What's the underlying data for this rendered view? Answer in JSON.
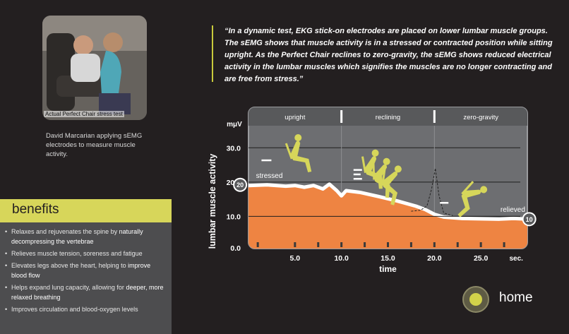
{
  "photo": {
    "caption": "Actual  Perfect Chair stress test"
  },
  "credit": "David Marcarian applying sEMG electrodes to measure muscle activity.",
  "quote": "“In a dynamic test, EKG stick-on electrodes are placed on lower lumbar muscle groups. The sEMG shows that muscle activity is in a stressed or contracted position while sitting upright. As the Perfect Chair reclines to zero-gravity, the sEMG shows reduced electrical activity in the lumbar muscles which signifies the muscles are no longer contracting and are free from stress.”",
  "benefits": {
    "title": "benefits",
    "items": [
      {
        "text": "Relaxes and rejuvenates the spine by ",
        "em": "naturally decompressing the vertebrae",
        "after": ""
      },
      {
        "text": "Relieves muscle tension, soreness and fatigue",
        "em": "",
        "after": ""
      },
      {
        "text": "Elevates legs above the heart, helping to ",
        "em": "improve blood flow",
        "after": ""
      },
      {
        "text": "Helps expand lung capacity, allowing for ",
        "em": "deeper, more relaxed breathing",
        "after": ""
      },
      {
        "text": "Improves circulation and blood-oxygen levels",
        "em": "",
        "after": ""
      }
    ]
  },
  "home": {
    "label": "home"
  },
  "colors": {
    "accent": "#d2d24a",
    "chart_panel": "#6d6e71",
    "muscle_fill": "#ee8442",
    "figure": "#d6d65a"
  },
  "chart_data": {
    "type": "area",
    "xlabel": "time",
    "ylabel": "lumbar muscle activity",
    "y_unit": "mμV",
    "x_unit": "sec.",
    "xlim": [
      0,
      30
    ],
    "ylim": [
      0,
      35
    ],
    "x_ticks": [
      5,
      10,
      15,
      20,
      25
    ],
    "x_tick_labels": [
      "5.0",
      "10.0",
      "15.0",
      "20.0",
      "25.0"
    ],
    "y_ticks": [
      0,
      10,
      20,
      30
    ],
    "y_tick_labels": [
      "0.0",
      "10.0",
      "20.0",
      "30.0"
    ],
    "grid": "horizontal",
    "phases": [
      {
        "label": "upright",
        "start": 0,
        "end": 10
      },
      {
        "label": "reclining",
        "start": 10,
        "end": 20
      },
      {
        "label": "zero-gravity",
        "start": 20,
        "end": 30
      }
    ],
    "series": [
      {
        "x": [
          0,
          2,
          4,
          5,
          6,
          7,
          8,
          8.7,
          9.5,
          10,
          10.5,
          12,
          14,
          16,
          18,
          19,
          20,
          21,
          23,
          25,
          27,
          28.5,
          30
        ],
        "values": [
          19,
          19.2,
          18.8,
          19,
          18.5,
          19,
          18,
          19.4,
          17.5,
          16,
          17.5,
          17,
          15.8,
          14.5,
          13,
          12,
          10.6,
          9.8,
          9.4,
          9.3,
          9.2,
          9.4,
          9.2
        ]
      }
    ],
    "spike": {
      "x": [
        17.5,
        18.5,
        19.2,
        19.7,
        20.1,
        20.5,
        21,
        22
      ],
      "values": [
        11.5,
        11.8,
        13,
        18,
        24,
        16,
        11,
        10.2
      ]
    },
    "annotations": [
      {
        "text": "stressed",
        "x": 0.2,
        "y": 21.2
      },
      {
        "text": "relieved",
        "x": 26.5,
        "y": 11.3
      }
    ],
    "markers": [
      {
        "label": "20",
        "x": -0.9,
        "y": 19.2
      },
      {
        "label": "10",
        "x": 30.2,
        "y": 9.2
      }
    ]
  }
}
